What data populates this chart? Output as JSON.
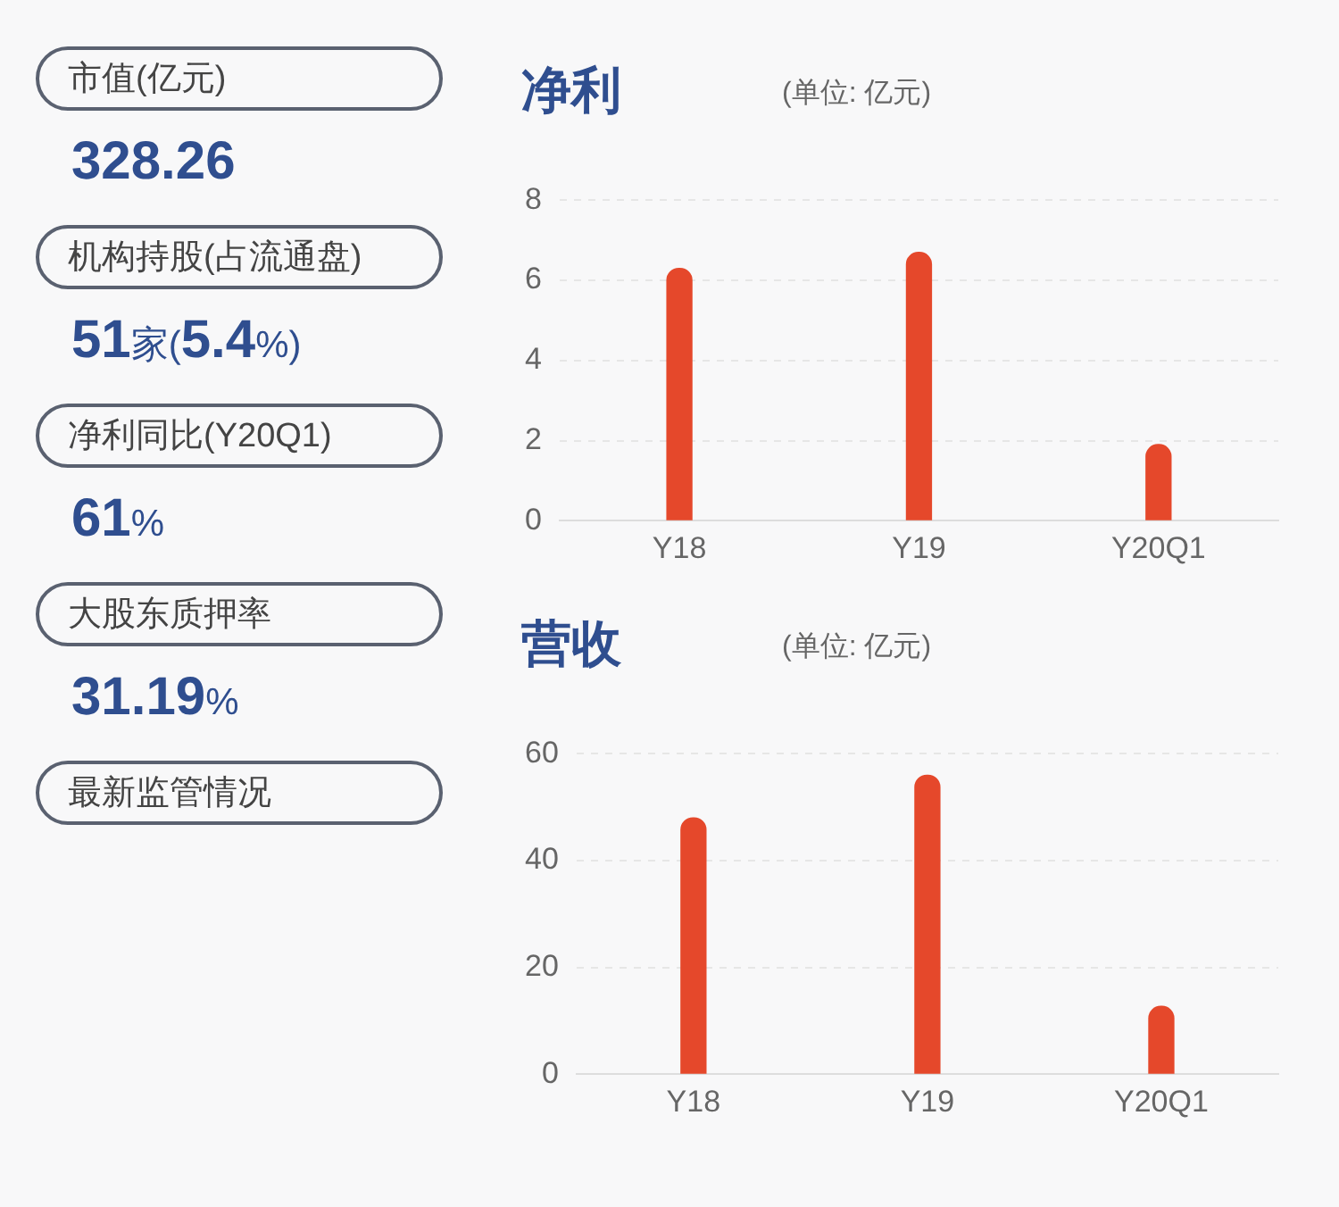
{
  "chart_data": [
    {
      "type": "other",
      "annotations": [
        "市值(亿元)",
        "328.26",
        "机构持股(占流通盘)",
        "51家(5.4%)",
        "净利同比(Y20Q1)",
        "61%",
        "大股东质押率",
        "31.19%",
        "最新监管情况"
      ]
    },
    {
      "type": "bar",
      "title": "净利",
      "subtitle": "(单位: 亿元)",
      "categories": [
        "Y18",
        "Y19",
        "Y20Q1"
      ],
      "values": [
        6.3,
        6.7,
        1.9
      ],
      "color": "#e5482b",
      "ylim": [
        0,
        8
      ],
      "yticks": [
        0,
        2,
        4,
        6,
        8
      ],
      "grid": "y"
    },
    {
      "type": "bar",
      "title": "营收",
      "subtitle": "(单位: 亿元)",
      "categories": [
        "Y18",
        "Y19",
        "Y20Q1"
      ],
      "values": [
        48,
        56,
        12.7
      ],
      "color": "#e5482b",
      "ylim": [
        0,
        60
      ],
      "yticks": [
        0,
        20,
        40,
        60
      ],
      "grid": "y"
    }
  ]
}
